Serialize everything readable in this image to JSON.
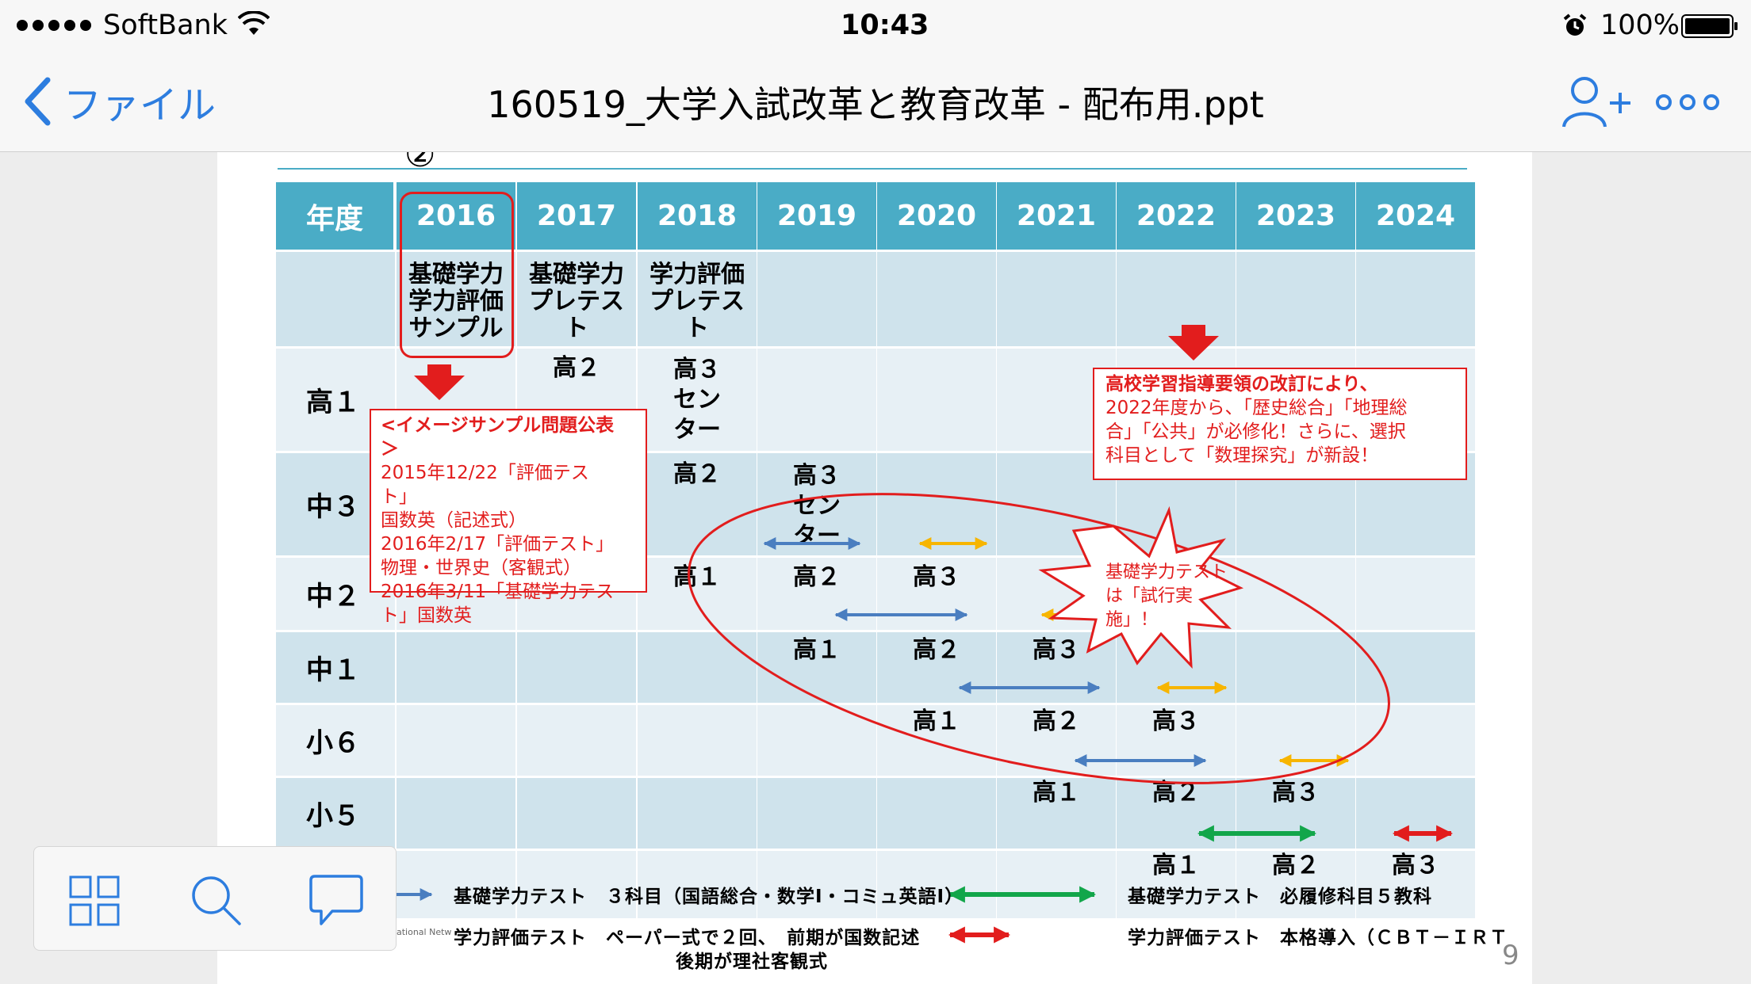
{
  "status_bar": {
    "carrier": "SoftBank",
    "time": "10:43",
    "battery": "100%",
    "icons": [
      "signal-dots-icon",
      "wifi-icon",
      "alarm-icon",
      "battery-icon"
    ]
  },
  "nav": {
    "back_label": "ファイル",
    "title": "160519_大学入試改革と教育改革 - 配布用.ppt",
    "icons": [
      "chevron-left-icon",
      "add-person-icon",
      "more-icon"
    ]
  },
  "slide": {
    "circled_number": "②",
    "page_number": "9",
    "footer_fragment": "ational Netw",
    "table": {
      "corner": "年度",
      "years": [
        "2016",
        "2017",
        "2018",
        "2019",
        "2020",
        "2021",
        "2022",
        "2023",
        "2024"
      ],
      "row_labels": [
        "高１",
        "中３",
        "中２",
        "中１",
        "小６",
        "小５"
      ],
      "test_row": [
        "基礎学力\n学力評価\nサンプル",
        "基礎学力\nプレテス\nト",
        "学力評価\nプレテス\nト"
      ],
      "cells": {
        "r1c2": "高２",
        "r1c3": "高３\nセン\nター",
        "r2c3": "高２",
        "r2c4": "高３\nセン\nター",
        "r3c3": "高１",
        "r3c4": "高２",
        "r3c5": "高３",
        "r4c4": "高１",
        "r4c5": "高２",
        "r4c6": "高３",
        "r5c5": "高１",
        "r5c6": "高２",
        "r5c7": "高３",
        "r6c6": "高１",
        "r6c7": "高２",
        "r6c8": "高３",
        "r7c7": "高１",
        "r7c8": "高２",
        "r7c9": "高３"
      }
    },
    "note_left": [
      "<イメージサンプル問題公表",
      "＞",
      "2015年12/22「評価テス",
      "ト」",
      "国数英（記述式）",
      "2016年2/17「評価テスト」",
      "物理・世界史（客観式）",
      "2016年3/11「基礎学力テス",
      "ト」国数英"
    ],
    "note_right": [
      "高校学習指導要領の改訂により、",
      "2022年度から、「歴史総合」「地理総",
      "合」「公共」が必修化！さらに、選択",
      "科目として「数理探究」が新設！"
    ],
    "burst_text": [
      "基礎学力テスト",
      "は「試行実",
      "施」！"
    ],
    "legend": {
      "basic_test": "基礎学力テスト　３科目（国語総合・数学Ⅰ・コミュ英語Ⅰ）",
      "eval_test_1": "学力評価テスト　ペーパー式で２回、　前期が国数記述",
      "eval_test_2": "後期が理社客観式",
      "basic_test_full": "基礎学力テスト　必履修科目５教科",
      "eval_test_full": "学力評価テスト　本格導入（ＣＢＴ－ＩＲＴ"
    },
    "colors": {
      "header_blue": "#4aacc6",
      "row_dark": "#cfe3ec",
      "row_light": "#e7f0f5",
      "red": "#e21d1d",
      "arrow_blue": "#4a7ec0",
      "arrow_yellow": "#f7b500",
      "arrow_green": "#12a64a"
    }
  },
  "toolbar": {
    "icons": [
      "grid-view-icon",
      "search-icon",
      "comment-icon"
    ]
  }
}
